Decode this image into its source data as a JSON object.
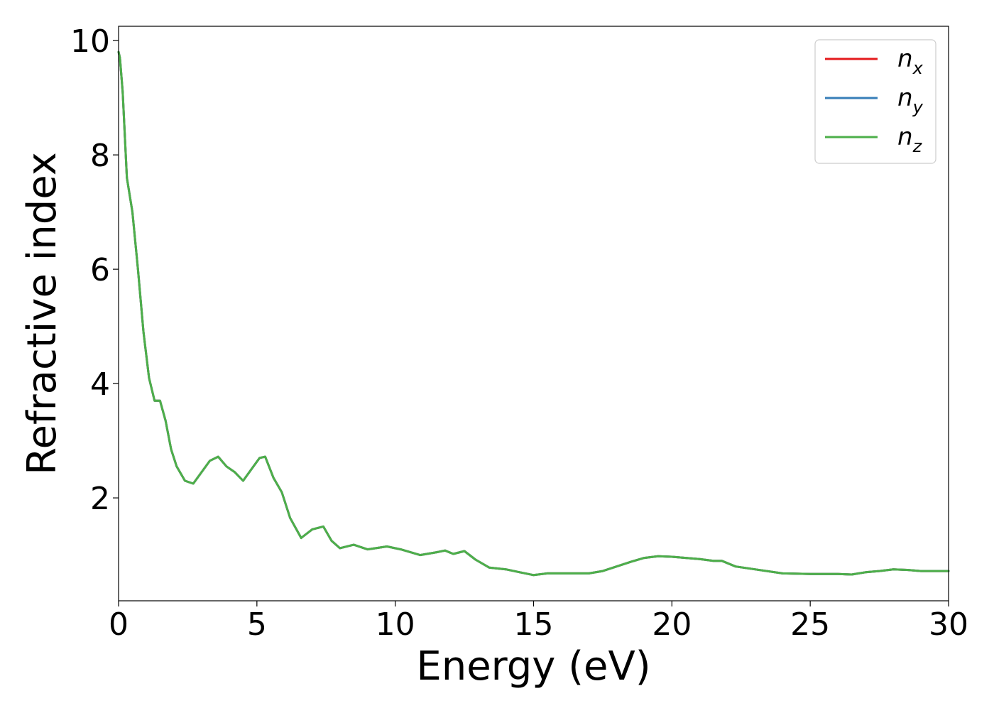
{
  "chart_data": {
    "type": "line",
    "xlabel": "Energy (eV)",
    "ylabel": "Refractive index",
    "xlim": [
      0,
      30
    ],
    "ylim": [
      0.2,
      10.25
    ],
    "xticks": [
      0,
      5,
      10,
      15,
      20,
      25,
      30
    ],
    "yticks": [
      2,
      4,
      6,
      8,
      10
    ],
    "grid": false,
    "legend_position": "top-right",
    "x": [
      0,
      0.05,
      0.15,
      0.3,
      0.5,
      0.7,
      0.9,
      1.1,
      1.3,
      1.5,
      1.7,
      1.9,
      2.1,
      2.4,
      2.7,
      3.0,
      3.3,
      3.6,
      3.9,
      4.2,
      4.5,
      4.8,
      5.1,
      5.3,
      5.6,
      5.9,
      6.2,
      6.6,
      7.0,
      7.4,
      7.7,
      8.0,
      8.5,
      9.0,
      9.7,
      10.2,
      10.9,
      11.5,
      11.8,
      12.1,
      12.5,
      12.9,
      13.4,
      14.0,
      14.5,
      15.0,
      15.5,
      16.0,
      17.0,
      17.5,
      18.0,
      18.5,
      19.0,
      19.5,
      20.0,
      20.5,
      21.0,
      21.5,
      21.8,
      22.3,
      23.0,
      24.0,
      25.0,
      26.0,
      26.5,
      27.0,
      27.5,
      28.0,
      28.5,
      29.0,
      30.0
    ],
    "series": [
      {
        "name": "n_x",
        "color": "#e41a1c",
        "y": [
          9.8,
          9.7,
          9.1,
          7.6,
          7.0,
          6.0,
          4.9,
          4.1,
          3.7,
          3.7,
          3.35,
          2.85,
          2.55,
          2.3,
          2.25,
          2.45,
          2.65,
          2.72,
          2.55,
          2.45,
          2.3,
          2.5,
          2.7,
          2.72,
          2.35,
          2.1,
          1.65,
          1.3,
          1.45,
          1.5,
          1.25,
          1.12,
          1.18,
          1.1,
          1.15,
          1.1,
          1.0,
          1.05,
          1.08,
          1.02,
          1.07,
          0.92,
          0.78,
          0.75,
          0.7,
          0.65,
          0.68,
          0.68,
          0.68,
          0.72,
          0.8,
          0.88,
          0.95,
          0.98,
          0.97,
          0.95,
          0.93,
          0.9,
          0.9,
          0.8,
          0.75,
          0.68,
          0.67,
          0.67,
          0.66,
          0.7,
          0.72,
          0.75,
          0.74,
          0.72,
          0.72
        ]
      },
      {
        "name": "n_y",
        "color": "#377eb8",
        "y": [
          9.8,
          9.7,
          9.1,
          7.6,
          7.0,
          6.0,
          4.9,
          4.1,
          3.7,
          3.7,
          3.35,
          2.85,
          2.55,
          2.3,
          2.25,
          2.45,
          2.65,
          2.72,
          2.55,
          2.45,
          2.3,
          2.5,
          2.7,
          2.72,
          2.35,
          2.1,
          1.65,
          1.3,
          1.45,
          1.5,
          1.25,
          1.12,
          1.18,
          1.1,
          1.15,
          1.1,
          1.0,
          1.05,
          1.08,
          1.02,
          1.07,
          0.92,
          0.78,
          0.75,
          0.7,
          0.65,
          0.68,
          0.68,
          0.68,
          0.72,
          0.8,
          0.88,
          0.95,
          0.98,
          0.97,
          0.95,
          0.93,
          0.9,
          0.9,
          0.8,
          0.75,
          0.68,
          0.67,
          0.67,
          0.66,
          0.7,
          0.72,
          0.75,
          0.74,
          0.72,
          0.72
        ]
      },
      {
        "name": "n_z",
        "color": "#4daf4a",
        "y": [
          9.8,
          9.7,
          9.1,
          7.6,
          7.0,
          6.0,
          4.9,
          4.1,
          3.7,
          3.7,
          3.35,
          2.85,
          2.55,
          2.3,
          2.25,
          2.45,
          2.65,
          2.72,
          2.55,
          2.45,
          2.3,
          2.5,
          2.7,
          2.72,
          2.35,
          2.1,
          1.65,
          1.3,
          1.45,
          1.5,
          1.25,
          1.12,
          1.18,
          1.1,
          1.15,
          1.1,
          1.0,
          1.05,
          1.08,
          1.02,
          1.07,
          0.92,
          0.78,
          0.75,
          0.7,
          0.65,
          0.68,
          0.68,
          0.68,
          0.72,
          0.8,
          0.88,
          0.95,
          0.98,
          0.97,
          0.95,
          0.93,
          0.9,
          0.9,
          0.8,
          0.75,
          0.68,
          0.67,
          0.67,
          0.66,
          0.7,
          0.72,
          0.75,
          0.74,
          0.72,
          0.72
        ]
      }
    ],
    "legend": [
      {
        "base": "n",
        "sub": "x",
        "color": "#e41a1c"
      },
      {
        "base": "n",
        "sub": "y",
        "color": "#377eb8"
      },
      {
        "base": "n",
        "sub": "z",
        "color": "#4daf4a"
      }
    ]
  }
}
